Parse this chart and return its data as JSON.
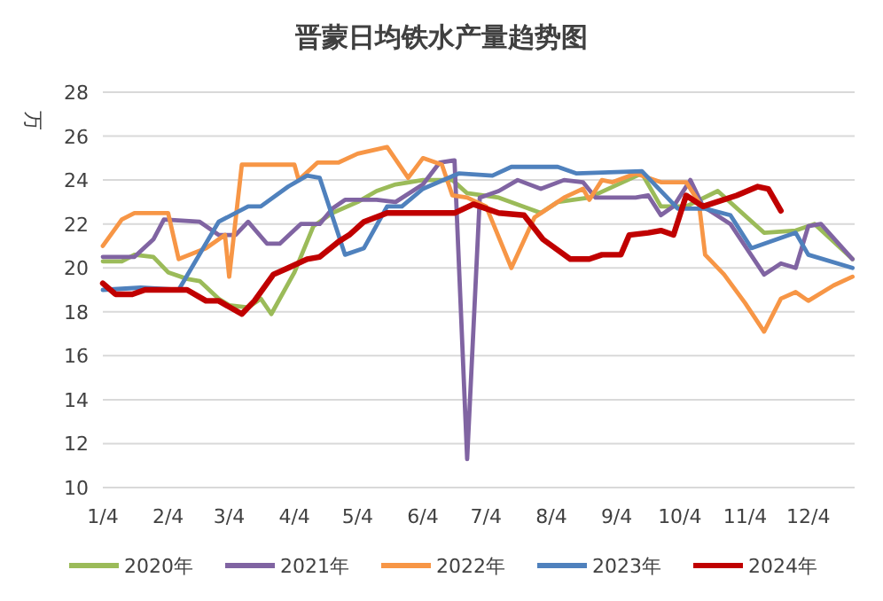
{
  "chart_data": {
    "type": "line",
    "title": "晋蒙日均铁水产量趋势图",
    "ylabel": "万",
    "xlim": [
      "--01-04",
      "--12-26"
    ],
    "xticks": [
      {
        "value": "--01-04",
        "label": "1/4"
      },
      {
        "value": "--02-04",
        "label": "2/4"
      },
      {
        "value": "--03-04",
        "label": "3/4"
      },
      {
        "value": "--04-04",
        "label": "4/4"
      },
      {
        "value": "--05-04",
        "label": "5/4"
      },
      {
        "value": "--06-04",
        "label": "6/4"
      },
      {
        "value": "--07-04",
        "label": "7/4"
      },
      {
        "value": "--08-04",
        "label": "8/4"
      },
      {
        "value": "--09-04",
        "label": "9/4"
      },
      {
        "value": "--10-04",
        "label": "10/4"
      },
      {
        "value": "--11-04",
        "label": "11/4"
      },
      {
        "value": "--12-04",
        "label": "12/4"
      }
    ],
    "ylim": [
      10,
      28
    ],
    "yticks": [
      10,
      12,
      14,
      16,
      18,
      20,
      22,
      24,
      26,
      28
    ],
    "grid": "y",
    "legend": "bottom",
    "marker": "none",
    "line_style": "solid",
    "series": [
      {
        "name": "2020年",
        "color": "#9bbb59",
        "x": [
          "--01-04",
          "--01-13",
          "--01-19",
          "--01-28",
          "--02-04",
          "--02-13",
          "--02-19",
          "--02-28",
          "--03-04",
          "--03-13",
          "--03-19",
          "--03-24",
          "--04-04",
          "--04-13",
          "--04-22",
          "--05-04",
          "--05-13",
          "--05-22",
          "--06-04",
          "--06-18",
          "--06-25",
          "--07-10",
          "--07-30",
          "--08-07",
          "--08-22",
          "--09-16",
          "--09-25",
          "--10-07",
          "--10-22",
          "--11-13",
          "--11-28",
          "--12-07",
          "--12-25"
        ],
        "values": [
          20.3,
          20.3,
          20.6,
          20.5,
          19.8,
          19.5,
          19.4,
          18.6,
          18.3,
          18.2,
          18.6,
          17.9,
          19.8,
          21.9,
          22.5,
          23.0,
          23.5,
          23.8,
          24.0,
          24.0,
          23.4,
          23.2,
          22.5,
          23.0,
          23.2,
          24.3,
          22.8,
          22.8,
          23.5,
          21.6,
          21.7,
          22.0,
          20.4
        ]
      },
      {
        "name": "2021年",
        "color": "#8064a2",
        "x": [
          "--01-04",
          "--01-19",
          "--01-28",
          "--02-02",
          "--02-19",
          "--02-28",
          "--03-07",
          "--03-13",
          "--03-22",
          "--03-28",
          "--04-07",
          "--04-16",
          "--04-22",
          "--04-28",
          "--05-13",
          "--05-22",
          "--06-04",
          "--06-12",
          "--06-19",
          "--06-25",
          "--07-01",
          "--07-10",
          "--07-19",
          "--07-30",
          "--08-10",
          "--08-19",
          "--08-25",
          "--09-13",
          "--09-19",
          "--09-25",
          "--10-01",
          "--10-09",
          "--10-15",
          "--10-28",
          "--11-13",
          "--11-21",
          "--11-28",
          "--12-04",
          "--12-10",
          "--12-25"
        ],
        "values": [
          20.5,
          20.5,
          21.3,
          22.2,
          22.1,
          21.5,
          21.5,
          22.1,
          21.1,
          21.1,
          22.0,
          22.0,
          22.7,
          23.1,
          23.1,
          23.0,
          23.8,
          24.8,
          24.9,
          11.3,
          23.2,
          23.5,
          24.0,
          23.6,
          24.0,
          23.9,
          23.2,
          23.2,
          23.3,
          22.4,
          22.8,
          24.0,
          22.8,
          22.0,
          19.7,
          20.2,
          20.0,
          21.9,
          22.0,
          20.4
        ]
      },
      {
        "name": "2022年",
        "color": "#f79646",
        "x": [
          "--01-04",
          "--01-13",
          "--01-19",
          "--02-04",
          "--02-09",
          "--02-22",
          "--03-02",
          "--03-04",
          "--03-10",
          "--03-22",
          "--04-04",
          "--04-06",
          "--04-15",
          "--04-25",
          "--05-04",
          "--05-18",
          "--05-28",
          "--06-04",
          "--06-13",
          "--06-18",
          "--06-25",
          "--07-04",
          "--07-16",
          "--07-27",
          "--08-10",
          "--08-19",
          "--08-22",
          "--08-28",
          "--09-02",
          "--09-13",
          "--09-25",
          "--10-07",
          "--10-13",
          "--10-16",
          "--10-25",
          "--11-04",
          "--11-13",
          "--11-21",
          "--11-28",
          "--12-04",
          "--12-16",
          "--12-25"
        ],
        "values": [
          21.0,
          22.2,
          22.5,
          22.5,
          20.4,
          20.9,
          21.5,
          19.6,
          24.7,
          24.7,
          24.7,
          24.0,
          24.8,
          24.8,
          25.2,
          25.5,
          24.1,
          25.0,
          24.7,
          23.3,
          23.2,
          22.8,
          20.0,
          22.3,
          23.2,
          23.6,
          23.1,
          24.0,
          23.9,
          24.3,
          23.9,
          23.9,
          23.0,
          20.6,
          19.7,
          18.4,
          17.1,
          18.6,
          18.9,
          18.5,
          19.2,
          19.6
        ]
      },
      {
        "name": "2023年",
        "color": "#4f81bd",
        "x": [
          "--01-04",
          "--01-22",
          "--02-09",
          "--02-28",
          "--03-13",
          "--03-19",
          "--04-01",
          "--04-10",
          "--04-16",
          "--04-28",
          "--05-07",
          "--05-18",
          "--05-25",
          "--06-04",
          "--06-21",
          "--07-07",
          "--07-16",
          "--08-07",
          "--08-16",
          "--09-16",
          "--09-28",
          "--10-03",
          "--10-16",
          "--10-28",
          "--11-07",
          "--11-28",
          "--12-04",
          "--12-25"
        ],
        "values": [
          19.0,
          19.1,
          19.0,
          22.1,
          22.8,
          22.8,
          23.7,
          24.2,
          24.1,
          20.6,
          20.9,
          22.8,
          22.8,
          23.6,
          24.3,
          24.2,
          24.6,
          24.6,
          24.3,
          24.4,
          23.2,
          22.7,
          22.7,
          22.4,
          20.9,
          21.6,
          20.6,
          20.0
        ]
      },
      {
        "name": "2024年",
        "color": "#c00000",
        "x": [
          "--01-04",
          "--01-10",
          "--01-18",
          "--01-24",
          "--02-13",
          "--02-22",
          "--02-28",
          "--03-10",
          "--03-16",
          "--03-25",
          "--04-01",
          "--04-10",
          "--04-16",
          "--04-25",
          "--04-30",
          "--05-07",
          "--05-18",
          "--06-04",
          "--06-19",
          "--06-28",
          "--07-10",
          "--07-22",
          "--07-31",
          "--08-13",
          "--08-22",
          "--08-28",
          "--09-06",
          "--09-10",
          "--09-19",
          "--09-25",
          "--10-01",
          "--10-07",
          "--10-15",
          "--10-31",
          "--11-10",
          "--11-15",
          "--11-21"
        ],
        "values": [
          19.3,
          18.8,
          18.8,
          19.0,
          19.0,
          18.5,
          18.5,
          17.9,
          18.5,
          19.7,
          20.0,
          20.4,
          20.5,
          21.2,
          21.5,
          22.1,
          22.5,
          22.5,
          22.5,
          22.9,
          22.5,
          22.4,
          21.3,
          20.4,
          20.4,
          20.6,
          20.6,
          21.5,
          21.6,
          21.7,
          21.5,
          23.3,
          22.8,
          23.3,
          23.7,
          23.6,
          22.6
        ]
      }
    ]
  }
}
